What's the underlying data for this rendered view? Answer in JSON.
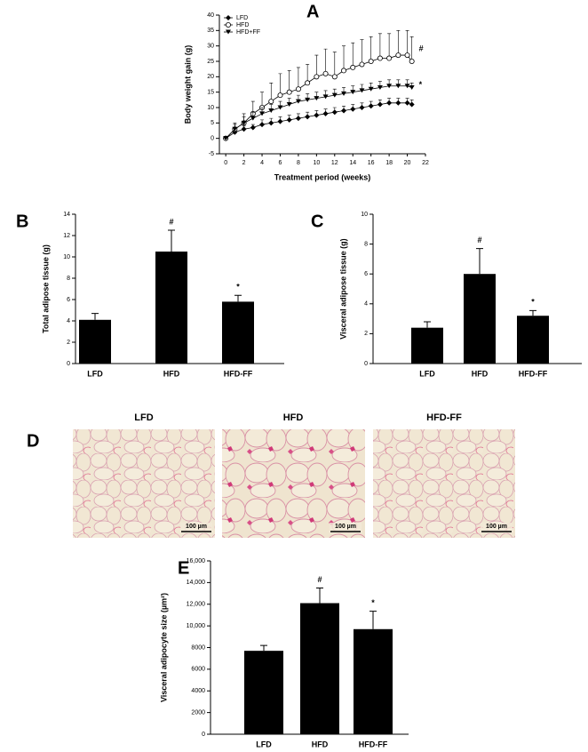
{
  "chart_data": [
    {
      "type": "line",
      "label": "A",
      "xlabel": "Treatment period (weeks)",
      "ylabel": "Body weight gain (g)",
      "x": [
        0,
        1,
        2,
        3,
        4,
        5,
        6,
        7,
        8,
        9,
        10,
        11,
        12,
        13,
        14,
        15,
        16,
        17,
        18,
        19,
        20,
        20.5
      ],
      "series": [
        {
          "name": "LFD",
          "color": "#000000",
          "marker": "diamond",
          "values": [
            0,
            2,
            3,
            3.5,
            4.5,
            5,
            5.5,
            6,
            6.5,
            7,
            7.5,
            8,
            8.5,
            9,
            9.5,
            10,
            10.5,
            11,
            11.5,
            11.5,
            11.5,
            11
          ],
          "errors": [
            0,
            1,
            1,
            1,
            1.5,
            1.5,
            1.5,
            1.5,
            1.5,
            1.5,
            1.5,
            1.5,
            1.5,
            1.5,
            1.5,
            1.5,
            1.5,
            1.5,
            1.5,
            1.5,
            1.5,
            1.5
          ]
        },
        {
          "name": "HFD",
          "color": "#000000",
          "marker": "circle-open",
          "annotation": "#",
          "values": [
            0,
            3,
            5,
            8,
            10,
            12,
            14,
            15,
            16,
            18,
            20,
            21,
            20,
            22,
            23,
            24,
            25,
            26,
            26,
            27,
            27,
            25
          ],
          "errors": [
            0,
            2,
            3,
            4,
            5,
            6,
            7,
            7,
            7,
            6,
            7,
            8,
            8,
            8,
            8,
            8,
            8,
            8,
            8,
            8,
            8,
            8
          ]
        },
        {
          "name": "HFD+FF",
          "color": "#000000",
          "marker": "triangle-down",
          "annotation": "*",
          "values": [
            0,
            3,
            5,
            6.5,
            8,
            9,
            10,
            11,
            12,
            12.5,
            13,
            13.5,
            14,
            14.5,
            15,
            15.5,
            16,
            16.5,
            17,
            17,
            17,
            16.5
          ],
          "errors": [
            0,
            1.5,
            2,
            2,
            2,
            2,
            2,
            2,
            2,
            2,
            2,
            2,
            2,
            2,
            2,
            2,
            2,
            2,
            2,
            2,
            2,
            1.5
          ]
        }
      ],
      "xlim": [
        -0.7,
        22
      ],
      "xticks": [
        0,
        2,
        4,
        6,
        8,
        10,
        12,
        14,
        16,
        18,
        20,
        22
      ],
      "ylim": [
        -5,
        40
      ],
      "yticks": [
        -5,
        0,
        5,
        10,
        15,
        20,
        25,
        30,
        35,
        40
      ],
      "legend": "upper left"
    },
    {
      "type": "bar",
      "label": "B",
      "ylabel": "Total adipose tissue (g)",
      "color": "#000000",
      "categories": [
        "LFD",
        "HFD",
        "HFD-FF"
      ],
      "values": [
        4.1,
        10.5,
        5.8
      ],
      "errors": [
        0.6,
        2.0,
        0.6
      ],
      "annotations": [
        null,
        "#",
        "*"
      ],
      "ylim": [
        0,
        14
      ],
      "yticks": [
        0,
        2,
        4,
        6,
        8,
        10,
        12,
        14
      ]
    },
    {
      "type": "bar",
      "label": "C",
      "ylabel": "Visceral adipose tissue (g)",
      "color": "#000000",
      "categories": [
        "LFD",
        "HFD",
        "HFD-FF"
      ],
      "values": [
        2.4,
        6.0,
        3.2
      ],
      "errors": [
        0.4,
        1.7,
        0.35
      ],
      "annotations": [
        null,
        "#",
        "*"
      ],
      "ylim": [
        0,
        10
      ],
      "yticks": [
        0,
        2,
        4,
        6,
        8,
        10
      ]
    },
    {
      "type": "bar",
      "label": "E",
      "ylabel": "Visceral adipocyte size (µm²)",
      "color": "#000000",
      "categories": [
        "LFD",
        "HFD",
        "HFD-FF"
      ],
      "values": [
        7700,
        12100,
        9700
      ],
      "errors": [
        500,
        1400,
        1650
      ],
      "annotations": [
        null,
        "#",
        "*"
      ],
      "ylim": [
        0,
        16000
      ],
      "yticks": [
        0,
        2000,
        4000,
        6000,
        8000,
        {
          "value": 10000,
          "label": "10,000"
        },
        {
          "value": 12000,
          "label": "12,000"
        },
        {
          "value": 14000,
          "label": "14,000"
        },
        {
          "value": 16000,
          "label": "16,000"
        }
      ]
    }
  ],
  "histology": {
    "label": "D",
    "panels": [
      {
        "title": "LFD",
        "scale_bar": "100 µm"
      },
      {
        "title": "HFD",
        "scale_bar": "100 µm"
      },
      {
        "title": "HFD-FF",
        "scale_bar": "100 µm"
      }
    ]
  }
}
